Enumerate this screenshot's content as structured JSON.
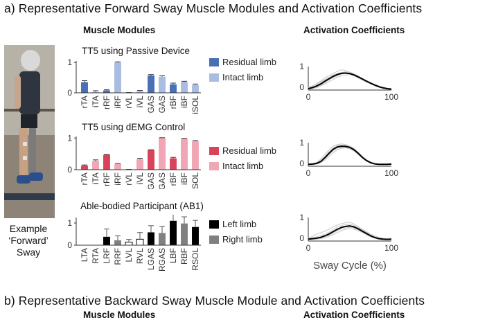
{
  "panel_a": {
    "title": "a)  Representative Forward Sway Muscle Modules and Activation Coefficients",
    "col_modules": "Muscle Modules",
    "col_activation": "Activation Coefficients",
    "photo_caption": [
      "Example",
      "‘Forward’",
      "Sway"
    ]
  },
  "panel_b": {
    "title": "b) Representative Backward Sway Muscle Module and Activation Coefficients",
    "col_modules": "Muscle Modules",
    "col_activation": "Activation Coefficients"
  },
  "colors": {
    "residual_tt5_passive": "#4a6fb5",
    "intact_tt5_passive": "#a9bde3",
    "residual_tt5_demg": "#d9435a",
    "intact_tt5_demg": "#f0a6b4",
    "left_ab1": "#000000",
    "right_ab1": "#808080",
    "coefficient_mean": "#000000",
    "coefficient_trials": "#c8c8c8"
  },
  "chart_data": [
    {
      "type": "bar",
      "title": "TT5 using Passive Device",
      "categories": [
        "rTA",
        "iTA",
        "rRF",
        "iRF",
        "rVL",
        "iVL",
        "rGAS",
        "iGAS",
        "rBF",
        "iBF",
        "iSOL"
      ],
      "series": [
        {
          "name": "Residual limb",
          "values": [
            0.35,
            null,
            0.08,
            null,
            0.0,
            null,
            0.57,
            null,
            0.28,
            null,
            null
          ],
          "error": [
            0.05,
            null,
            0.02,
            null,
            0.01,
            null,
            0.03,
            null,
            0.04,
            null,
            null
          ]
        },
        {
          "name": "Intact limb",
          "values": [
            null,
            0.03,
            null,
            1.0,
            null,
            0.05,
            null,
            0.53,
            null,
            0.36,
            0.26
          ],
          "error": [
            null,
            0.04,
            null,
            0.02,
            null,
            0.03,
            null,
            0.03,
            null,
            0.02,
            0.03
          ]
        }
      ],
      "yticks": [
        0,
        1
      ],
      "ylim": [
        0,
        1.05
      ]
    },
    {
      "type": "bar",
      "title": "TT5 using dEMG Control",
      "categories": [
        "rTA",
        "iTA",
        "rRF",
        "iRF",
        "rVL",
        "iVL",
        "rGAS",
        "iGAS",
        "rBF",
        "iBF",
        "iSOL"
      ],
      "series": [
        {
          "name": "Residual limb",
          "values": [
            0.13,
            null,
            0.47,
            null,
            0.0,
            null,
            0.62,
            null,
            0.36,
            null,
            null
          ],
          "error": [
            0.02,
            null,
            0.01,
            null,
            0.01,
            null,
            0.01,
            null,
            0.03,
            null,
            null
          ]
        },
        {
          "name": "Intact limb",
          "values": [
            null,
            0.28,
            null,
            0.18,
            null,
            0.33,
            null,
            1.0,
            null,
            0.98,
            0.9
          ],
          "error": [
            null,
            0.03,
            null,
            0.02,
            null,
            0.03,
            null,
            0.01,
            null,
            0.01,
            0.02
          ]
        }
      ],
      "yticks": [
        0,
        1
      ],
      "ylim": [
        0,
        1.05
      ]
    },
    {
      "type": "bar",
      "title": "Able-bodied Participant (AB1)",
      "categories": [
        "LTA",
        "RTA",
        "LRF",
        "RRF",
        "LVL",
        "RVL",
        "LGAS",
        "RGAS",
        "LBF",
        "RBF",
        "RSOL"
      ],
      "series": [
        {
          "name": "Left limb",
          "values": [
            0.0,
            null,
            0.38,
            null,
            0.14,
            null,
            0.58,
            null,
            1.1,
            null,
            0.82
          ],
          "error": [
            0.0,
            null,
            0.35,
            null,
            0.12,
            null,
            0.3,
            null,
            0.35,
            null,
            0.3
          ]
        },
        {
          "name": "Right limb",
          "values": [
            null,
            0.0,
            null,
            0.22,
            null,
            0.27,
            null,
            0.55,
            null,
            0.98,
            null
          ],
          "error": [
            null,
            0.0,
            null,
            0.2,
            null,
            0.3,
            null,
            0.3,
            null,
            0.3,
            null
          ]
        }
      ],
      "open_bars": [
        "LVL",
        "RVL"
      ],
      "yticks": [
        0,
        1
      ],
      "ylim": [
        0,
        1.2
      ]
    },
    {
      "type": "line",
      "title": "",
      "xlabel": "",
      "xlim": [
        0,
        100
      ],
      "ylim": [
        0,
        1
      ],
      "xtick_labels": [
        "0",
        "100"
      ],
      "ytick_labels": [
        "0",
        "1"
      ],
      "x": [
        0,
        5,
        10,
        15,
        20,
        25,
        30,
        35,
        40,
        45,
        50,
        55,
        60,
        65,
        70,
        75,
        80,
        85,
        90,
        95,
        100
      ],
      "series": [
        {
          "name": "",
          "values": [
            0.06,
            0.1,
            0.17,
            0.26,
            0.37,
            0.48,
            0.58,
            0.66,
            0.71,
            0.72,
            0.7,
            0.64,
            0.56,
            0.47,
            0.38,
            0.29,
            0.21,
            0.14,
            0.09,
            0.06,
            0.04
          ]
        }
      ],
      "trials": [
        [
          0.1,
          0.15,
          0.28,
          0.38,
          0.52,
          0.62,
          0.7,
          0.8,
          0.86,
          0.83,
          0.76,
          0.7,
          0.6,
          0.5,
          0.4,
          0.3,
          0.22,
          0.15,
          0.1,
          0.08,
          0.05
        ],
        [
          0.02,
          0.06,
          0.1,
          0.18,
          0.25,
          0.36,
          0.45,
          0.55,
          0.6,
          0.64,
          0.66,
          0.62,
          0.54,
          0.46,
          0.4,
          0.32,
          0.25,
          0.18,
          0.12,
          0.08,
          0.05
        ],
        [
          0.08,
          0.12,
          0.2,
          0.3,
          0.42,
          0.5,
          0.62,
          0.7,
          0.74,
          0.78,
          0.74,
          0.66,
          0.58,
          0.5,
          0.4,
          0.3,
          0.2,
          0.12,
          0.08,
          0.05,
          0.03
        ],
        [
          0.05,
          0.08,
          0.12,
          0.2,
          0.3,
          0.44,
          0.52,
          0.6,
          0.68,
          0.7,
          0.68,
          0.6,
          0.52,
          0.42,
          0.33,
          0.26,
          0.2,
          0.16,
          0.1,
          0.07,
          0.04
        ],
        [
          0.12,
          0.18,
          0.25,
          0.35,
          0.45,
          0.55,
          0.64,
          0.7,
          0.74,
          0.72,
          0.66,
          0.6,
          0.52,
          0.44,
          0.36,
          0.28,
          0.2,
          0.12,
          0.08,
          0.06,
          0.05
        ]
      ]
    },
    {
      "type": "line",
      "title": "",
      "xlabel": "",
      "xlim": [
        0,
        100
      ],
      "ylim": [
        0,
        1
      ],
      "xtick_labels": [
        "0",
        "100"
      ],
      "ytick_labels": [
        "0",
        "1"
      ],
      "x": [
        0,
        5,
        10,
        15,
        20,
        25,
        30,
        35,
        40,
        45,
        50,
        55,
        60,
        65,
        70,
        75,
        80,
        85,
        90,
        95,
        100
      ],
      "series": [
        {
          "name": "",
          "values": [
            0.08,
            0.09,
            0.12,
            0.2,
            0.36,
            0.55,
            0.72,
            0.82,
            0.85,
            0.84,
            0.8,
            0.7,
            0.55,
            0.38,
            0.24,
            0.15,
            0.1,
            0.08,
            0.08,
            0.08,
            0.09
          ]
        }
      ],
      "trials": [
        [
          0.1,
          0.12,
          0.16,
          0.3,
          0.5,
          0.7,
          0.85,
          0.92,
          0.95,
          0.92,
          0.86,
          0.76,
          0.6,
          0.42,
          0.28,
          0.18,
          0.12,
          0.1,
          0.1,
          0.1,
          0.1
        ],
        [
          0.05,
          0.06,
          0.08,
          0.14,
          0.26,
          0.42,
          0.58,
          0.7,
          0.76,
          0.78,
          0.74,
          0.64,
          0.5,
          0.34,
          0.22,
          0.14,
          0.09,
          0.07,
          0.06,
          0.06,
          0.07
        ],
        [
          0.1,
          0.1,
          0.14,
          0.24,
          0.42,
          0.62,
          0.78,
          0.88,
          0.9,
          0.88,
          0.84,
          0.74,
          0.58,
          0.4,
          0.26,
          0.16,
          0.11,
          0.09,
          0.09,
          0.09,
          0.1
        ],
        [
          0.06,
          0.08,
          0.1,
          0.18,
          0.32,
          0.5,
          0.66,
          0.76,
          0.8,
          0.8,
          0.76,
          0.66,
          0.52,
          0.36,
          0.22,
          0.14,
          0.09,
          0.07,
          0.07,
          0.07,
          0.08
        ]
      ]
    },
    {
      "type": "line",
      "title": "",
      "xlabel": "Sway Cycle (%)",
      "xlim": [
        0,
        100
      ],
      "ylim": [
        0,
        1
      ],
      "xtick_labels": [
        "0",
        "100"
      ],
      "ytick_labels": [
        "0",
        "1"
      ],
      "x": [
        0,
        5,
        10,
        15,
        20,
        25,
        30,
        35,
        40,
        45,
        50,
        55,
        60,
        65,
        70,
        75,
        80,
        85,
        90,
        95,
        100
      ],
      "series": [
        {
          "name": "",
          "values": [
            0.08,
            0.1,
            0.12,
            0.16,
            0.22,
            0.3,
            0.4,
            0.5,
            0.58,
            0.62,
            0.64,
            0.6,
            0.52,
            0.42,
            0.32,
            0.22,
            0.15,
            0.1,
            0.08,
            0.07,
            0.08
          ]
        }
      ],
      "trials": [
        [
          0.12,
          0.2,
          0.3,
          0.35,
          0.42,
          0.5,
          0.6,
          0.68,
          0.74,
          0.78,
          0.8,
          0.72,
          0.62,
          0.5,
          0.4,
          0.3,
          0.22,
          0.16,
          0.12,
          0.1,
          0.12
        ],
        [
          0.05,
          0.06,
          0.08,
          0.1,
          0.14,
          0.2,
          0.28,
          0.36,
          0.44,
          0.5,
          0.52,
          0.5,
          0.44,
          0.36,
          0.26,
          0.18,
          0.12,
          0.08,
          0.06,
          0.05,
          0.06
        ],
        [
          0.1,
          0.14,
          0.18,
          0.24,
          0.3,
          0.38,
          0.48,
          0.6,
          0.66,
          0.7,
          0.72,
          0.66,
          0.58,
          0.48,
          0.36,
          0.26,
          0.18,
          0.12,
          0.1,
          0.08,
          0.1
        ],
        [
          0.06,
          0.08,
          0.1,
          0.12,
          0.18,
          0.24,
          0.34,
          0.44,
          0.52,
          0.56,
          0.58,
          0.56,
          0.48,
          0.38,
          0.3,
          0.2,
          0.14,
          0.1,
          0.07,
          0.06,
          0.07
        ]
      ]
    }
  ]
}
